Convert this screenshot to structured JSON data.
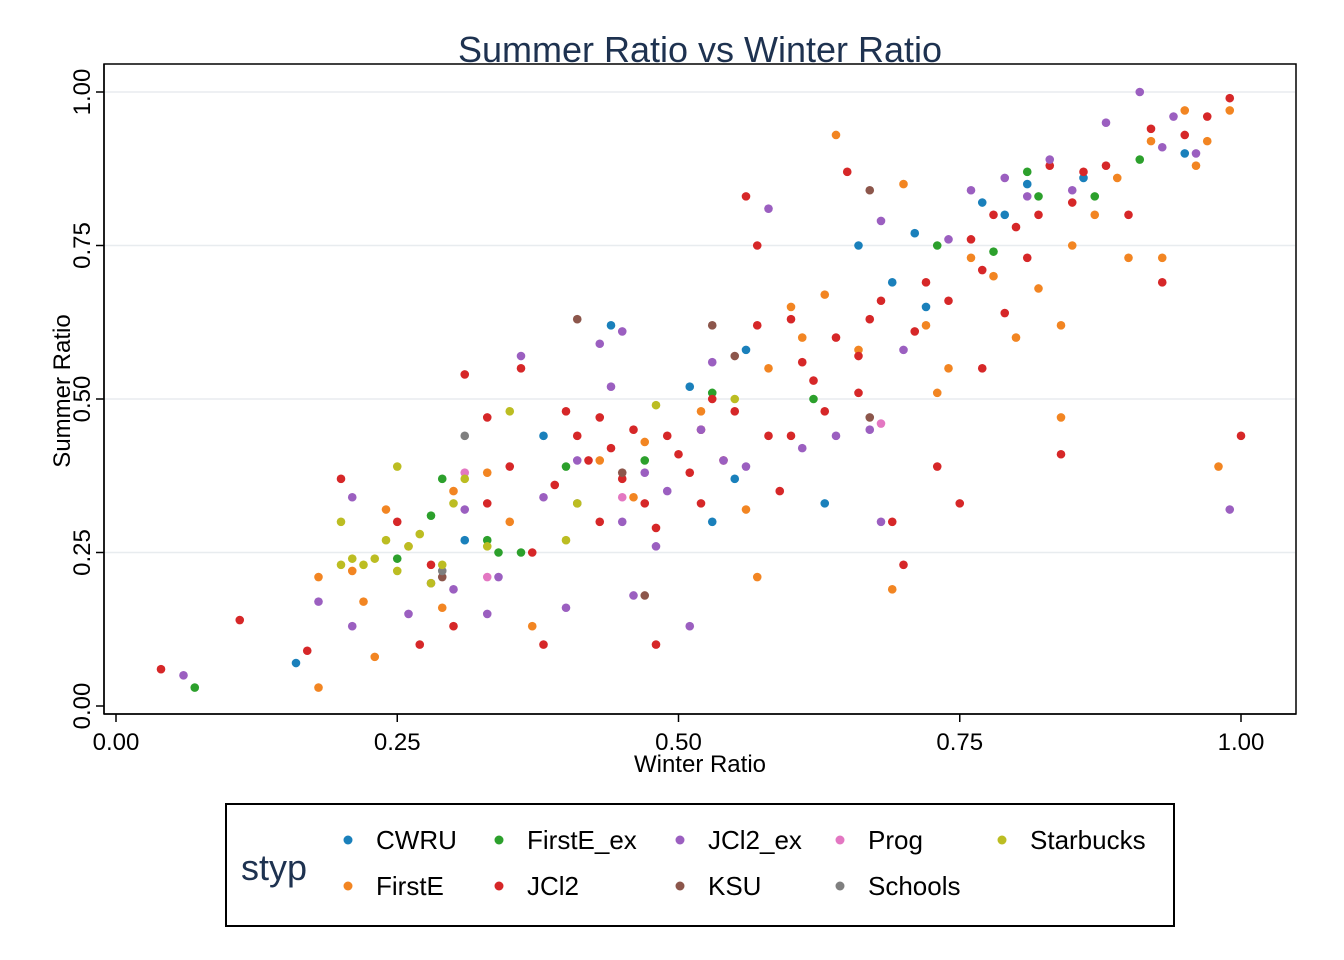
{
  "chart_data": {
    "type": "scatter",
    "title": "Summer Ratio vs Winter Ratio",
    "xlabel": "Winter Ratio",
    "ylabel": "Summer Ratio",
    "xlim": [
      0,
      1
    ],
    "ylim": [
      0,
      1
    ],
    "xticks": [
      "0.00",
      "0.25",
      "0.50",
      "0.75",
      "1.00"
    ],
    "yticks": [
      "0.00",
      "0.25",
      "0.50",
      "0.75",
      "1.00"
    ],
    "grid": "horizontal",
    "legend_title": "styp",
    "legend_position": "bottom",
    "series": [
      {
        "name": "CWRU",
        "color": "#1a80bb",
        "points": [
          [
            0.16,
            0.07
          ],
          [
            0.31,
            0.27
          ],
          [
            0.38,
            0.44
          ],
          [
            0.44,
            0.62
          ],
          [
            0.51,
            0.52
          ],
          [
            0.53,
            0.3
          ],
          [
            0.56,
            0.58
          ],
          [
            0.63,
            0.33
          ],
          [
            0.66,
            0.75
          ],
          [
            0.71,
            0.77
          ],
          [
            0.72,
            0.65
          ],
          [
            0.77,
            0.82
          ],
          [
            0.79,
            0.8
          ],
          [
            0.81,
            0.85
          ],
          [
            0.86,
            0.86
          ],
          [
            0.95,
            0.9
          ],
          [
            0.55,
            0.37
          ],
          [
            0.69,
            0.69
          ]
        ]
      },
      {
        "name": "FirstE",
        "color": "#f28522",
        "points": [
          [
            0.18,
            0.03
          ],
          [
            0.18,
            0.21
          ],
          [
            0.21,
            0.22
          ],
          [
            0.22,
            0.17
          ],
          [
            0.23,
            0.08
          ],
          [
            0.24,
            0.32
          ],
          [
            0.26,
            0.26
          ],
          [
            0.29,
            0.16
          ],
          [
            0.3,
            0.35
          ],
          [
            0.33,
            0.38
          ],
          [
            0.35,
            0.3
          ],
          [
            0.37,
            0.13
          ],
          [
            0.43,
            0.4
          ],
          [
            0.46,
            0.34
          ],
          [
            0.47,
            0.43
          ],
          [
            0.52,
            0.48
          ],
          [
            0.56,
            0.32
          ],
          [
            0.57,
            0.21
          ],
          [
            0.58,
            0.55
          ],
          [
            0.6,
            0.65
          ],
          [
            0.61,
            0.6
          ],
          [
            0.63,
            0.67
          ],
          [
            0.64,
            0.93
          ],
          [
            0.66,
            0.58
          ],
          [
            0.69,
            0.19
          ],
          [
            0.7,
            0.85
          ],
          [
            0.72,
            0.62
          ],
          [
            0.73,
            0.51
          ],
          [
            0.74,
            0.55
          ],
          [
            0.76,
            0.73
          ],
          [
            0.78,
            0.7
          ],
          [
            0.8,
            0.6
          ],
          [
            0.82,
            0.68
          ],
          [
            0.84,
            0.47
          ],
          [
            0.84,
            0.62
          ],
          [
            0.85,
            0.75
          ],
          [
            0.87,
            0.8
          ],
          [
            0.89,
            0.86
          ],
          [
            0.9,
            0.73
          ],
          [
            0.93,
            0.73
          ],
          [
            0.95,
            0.97
          ],
          [
            0.96,
            0.88
          ],
          [
            0.97,
            0.92
          ],
          [
            0.98,
            0.39
          ],
          [
            0.99,
            0.97
          ],
          [
            0.92,
            0.92
          ]
        ]
      },
      {
        "name": "FirstE_ex",
        "color": "#2ca02c",
        "points": [
          [
            0.07,
            0.03
          ],
          [
            0.25,
            0.24
          ],
          [
            0.28,
            0.31
          ],
          [
            0.29,
            0.37
          ],
          [
            0.33,
            0.27
          ],
          [
            0.34,
            0.25
          ],
          [
            0.36,
            0.25
          ],
          [
            0.4,
            0.39
          ],
          [
            0.47,
            0.4
          ],
          [
            0.53,
            0.51
          ],
          [
            0.62,
            0.5
          ],
          [
            0.73,
            0.75
          ],
          [
            0.78,
            0.74
          ],
          [
            0.81,
            0.87
          ],
          [
            0.82,
            0.83
          ],
          [
            0.87,
            0.83
          ],
          [
            0.91,
            0.89
          ]
        ]
      },
      {
        "name": "JCl2",
        "color": "#d62728",
        "points": [
          [
            0.04,
            0.06
          ],
          [
            0.11,
            0.14
          ],
          [
            0.17,
            0.09
          ],
          [
            0.2,
            0.37
          ],
          [
            0.25,
            0.3
          ],
          [
            0.27,
            0.1
          ],
          [
            0.28,
            0.23
          ],
          [
            0.3,
            0.13
          ],
          [
            0.31,
            0.54
          ],
          [
            0.33,
            0.47
          ],
          [
            0.33,
            0.33
          ],
          [
            0.35,
            0.39
          ],
          [
            0.36,
            0.55
          ],
          [
            0.37,
            0.25
          ],
          [
            0.38,
            0.1
          ],
          [
            0.39,
            0.36
          ],
          [
            0.4,
            0.48
          ],
          [
            0.41,
            0.44
          ],
          [
            0.42,
            0.4
          ],
          [
            0.43,
            0.47
          ],
          [
            0.44,
            0.42
          ],
          [
            0.45,
            0.37
          ],
          [
            0.46,
            0.45
          ],
          [
            0.47,
            0.33
          ],
          [
            0.48,
            0.1
          ],
          [
            0.49,
            0.44
          ],
          [
            0.5,
            0.41
          ],
          [
            0.51,
            0.38
          ],
          [
            0.52,
            0.45
          ],
          [
            0.53,
            0.5
          ],
          [
            0.54,
            0.4
          ],
          [
            0.55,
            0.48
          ],
          [
            0.56,
            0.83
          ],
          [
            0.57,
            0.75
          ],
          [
            0.57,
            0.62
          ],
          [
            0.58,
            0.44
          ],
          [
            0.59,
            0.35
          ],
          [
            0.6,
            0.63
          ],
          [
            0.61,
            0.56
          ],
          [
            0.62,
            0.53
          ],
          [
            0.63,
            0.48
          ],
          [
            0.64,
            0.6
          ],
          [
            0.65,
            0.87
          ],
          [
            0.66,
            0.57
          ],
          [
            0.67,
            0.63
          ],
          [
            0.68,
            0.66
          ],
          [
            0.69,
            0.3
          ],
          [
            0.7,
            0.23
          ],
          [
            0.71,
            0.61
          ],
          [
            0.72,
            0.69
          ],
          [
            0.73,
            0.39
          ],
          [
            0.74,
            0.66
          ],
          [
            0.75,
            0.33
          ],
          [
            0.76,
            0.76
          ],
          [
            0.77,
            0.71
          ],
          [
            0.78,
            0.8
          ],
          [
            0.79,
            0.64
          ],
          [
            0.8,
            0.78
          ],
          [
            0.81,
            0.73
          ],
          [
            0.82,
            0.8
          ],
          [
            0.83,
            0.88
          ],
          [
            0.84,
            0.41
          ],
          [
            0.85,
            0.82
          ],
          [
            0.86,
            0.87
          ],
          [
            0.88,
            0.88
          ],
          [
            0.9,
            0.8
          ],
          [
            0.92,
            0.94
          ],
          [
            0.93,
            0.69
          ],
          [
            0.95,
            0.93
          ],
          [
            0.97,
            0.96
          ],
          [
            0.99,
            0.99
          ],
          [
            1.0,
            0.44
          ],
          [
            0.43,
            0.3
          ],
          [
            0.48,
            0.29
          ],
          [
            0.52,
            0.33
          ],
          [
            0.6,
            0.44
          ],
          [
            0.66,
            0.51
          ],
          [
            0.77,
            0.55
          ]
        ]
      },
      {
        "name": "JCl2_ex",
        "color": "#9b5fc0",
        "points": [
          [
            0.06,
            0.05
          ],
          [
            0.18,
            0.17
          ],
          [
            0.21,
            0.13
          ],
          [
            0.21,
            0.34
          ],
          [
            0.26,
            0.15
          ],
          [
            0.28,
            0.2
          ],
          [
            0.3,
            0.19
          ],
          [
            0.31,
            0.32
          ],
          [
            0.33,
            0.15
          ],
          [
            0.34,
            0.21
          ],
          [
            0.36,
            0.57
          ],
          [
            0.38,
            0.34
          ],
          [
            0.4,
            0.16
          ],
          [
            0.41,
            0.4
          ],
          [
            0.43,
            0.59
          ],
          [
            0.44,
            0.52
          ],
          [
            0.45,
            0.3
          ],
          [
            0.46,
            0.18
          ],
          [
            0.47,
            0.38
          ],
          [
            0.48,
            0.26
          ],
          [
            0.49,
            0.35
          ],
          [
            0.51,
            0.13
          ],
          [
            0.52,
            0.45
          ],
          [
            0.53,
            0.56
          ],
          [
            0.54,
            0.4
          ],
          [
            0.56,
            0.39
          ],
          [
            0.58,
            0.81
          ],
          [
            0.61,
            0.42
          ],
          [
            0.64,
            0.44
          ],
          [
            0.67,
            0.45
          ],
          [
            0.68,
            0.3
          ],
          [
            0.68,
            0.79
          ],
          [
            0.7,
            0.58
          ],
          [
            0.74,
            0.76
          ],
          [
            0.76,
            0.84
          ],
          [
            0.79,
            0.86
          ],
          [
            0.81,
            0.83
          ],
          [
            0.83,
            0.89
          ],
          [
            0.85,
            0.84
          ],
          [
            0.88,
            0.95
          ],
          [
            0.91,
            1.0
          ],
          [
            0.93,
            0.91
          ],
          [
            0.94,
            0.96
          ],
          [
            0.96,
            0.9
          ],
          [
            0.99,
            0.32
          ],
          [
            0.45,
            0.61
          ]
        ]
      },
      {
        "name": "KSU",
        "color": "#8c564b",
        "points": [
          [
            0.41,
            0.63
          ],
          [
            0.45,
            0.38
          ],
          [
            0.47,
            0.18
          ],
          [
            0.53,
            0.62
          ],
          [
            0.55,
            0.57
          ],
          [
            0.67,
            0.84
          ],
          [
            0.67,
            0.47
          ],
          [
            0.29,
            0.21
          ]
        ]
      },
      {
        "name": "Prog",
        "color": "#e377c2",
        "points": [
          [
            0.31,
            0.38
          ],
          [
            0.33,
            0.21
          ],
          [
            0.45,
            0.34
          ],
          [
            0.68,
            0.46
          ]
        ]
      },
      {
        "name": "Schools",
        "color": "#7f7f7f",
        "points": [
          [
            0.31,
            0.44
          ],
          [
            0.29,
            0.22
          ],
          [
            0.41,
            0.33
          ]
        ]
      },
      {
        "name": "Starbucks",
        "color": "#bcbd22",
        "points": [
          [
            0.2,
            0.3
          ],
          [
            0.2,
            0.23
          ],
          [
            0.21,
            0.24
          ],
          [
            0.22,
            0.23
          ],
          [
            0.23,
            0.24
          ],
          [
            0.24,
            0.27
          ],
          [
            0.25,
            0.39
          ],
          [
            0.25,
            0.22
          ],
          [
            0.26,
            0.26
          ],
          [
            0.27,
            0.28
          ],
          [
            0.28,
            0.2
          ],
          [
            0.29,
            0.23
          ],
          [
            0.3,
            0.33
          ],
          [
            0.31,
            0.37
          ],
          [
            0.33,
            0.26
          ],
          [
            0.35,
            0.48
          ],
          [
            0.4,
            0.27
          ],
          [
            0.41,
            0.33
          ],
          [
            0.48,
            0.49
          ],
          [
            0.55,
            0.5
          ]
        ]
      }
    ]
  }
}
